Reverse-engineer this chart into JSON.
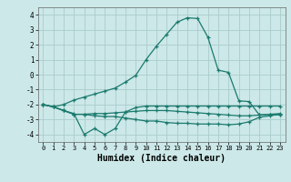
{
  "x": [
    0,
    1,
    2,
    3,
    4,
    5,
    6,
    7,
    8,
    9,
    10,
    11,
    12,
    13,
    14,
    15,
    16,
    17,
    18,
    19,
    20,
    21,
    22,
    23
  ],
  "line1": [
    -2.0,
    -2.15,
    -2.0,
    -1.7,
    -1.5,
    -1.3,
    -1.1,
    -0.9,
    -0.5,
    -0.05,
    1.0,
    1.9,
    2.7,
    3.5,
    3.8,
    3.75,
    2.5,
    0.3,
    0.15,
    -1.75,
    -1.8,
    -2.7,
    -2.65,
    -2.7
  ],
  "line2": [
    -2.0,
    -2.15,
    -2.4,
    -2.6,
    -4.0,
    -3.6,
    -4.0,
    -3.6,
    -2.5,
    -2.2,
    -2.1,
    -2.1,
    -2.1,
    -2.1,
    -2.1,
    -2.1,
    -2.1,
    -2.1,
    -2.1,
    -2.1,
    -2.1,
    -2.1,
    -2.1,
    -2.1
  ],
  "line3": [
    -2.0,
    -2.15,
    -2.4,
    -2.65,
    -2.65,
    -2.6,
    -2.6,
    -2.55,
    -2.5,
    -2.45,
    -2.4,
    -2.4,
    -2.4,
    -2.45,
    -2.5,
    -2.55,
    -2.6,
    -2.65,
    -2.7,
    -2.75,
    -2.75,
    -2.7,
    -2.65,
    -2.6
  ],
  "line4": [
    -2.0,
    -2.15,
    -2.4,
    -2.65,
    -2.65,
    -2.75,
    -2.8,
    -2.8,
    -2.9,
    -3.0,
    -3.1,
    -3.1,
    -3.2,
    -3.25,
    -3.25,
    -3.3,
    -3.3,
    -3.3,
    -3.35,
    -3.3,
    -3.15,
    -2.85,
    -2.75,
    -2.65
  ],
  "line_color": "#1a7a6e",
  "background_color": "#cce8e8",
  "grid_color": "#b0d8d8",
  "xlabel": "Humidex (Indice chaleur)",
  "xlim": [
    -0.5,
    23.5
  ],
  "ylim": [
    -4.5,
    4.5
  ],
  "yticks": [
    -4,
    -3,
    -2,
    -1,
    0,
    1,
    2,
    3,
    4
  ],
  "xticks": [
    0,
    1,
    2,
    3,
    4,
    5,
    6,
    7,
    8,
    9,
    10,
    11,
    12,
    13,
    14,
    15,
    16,
    17,
    18,
    19,
    20,
    21,
    22,
    23
  ]
}
